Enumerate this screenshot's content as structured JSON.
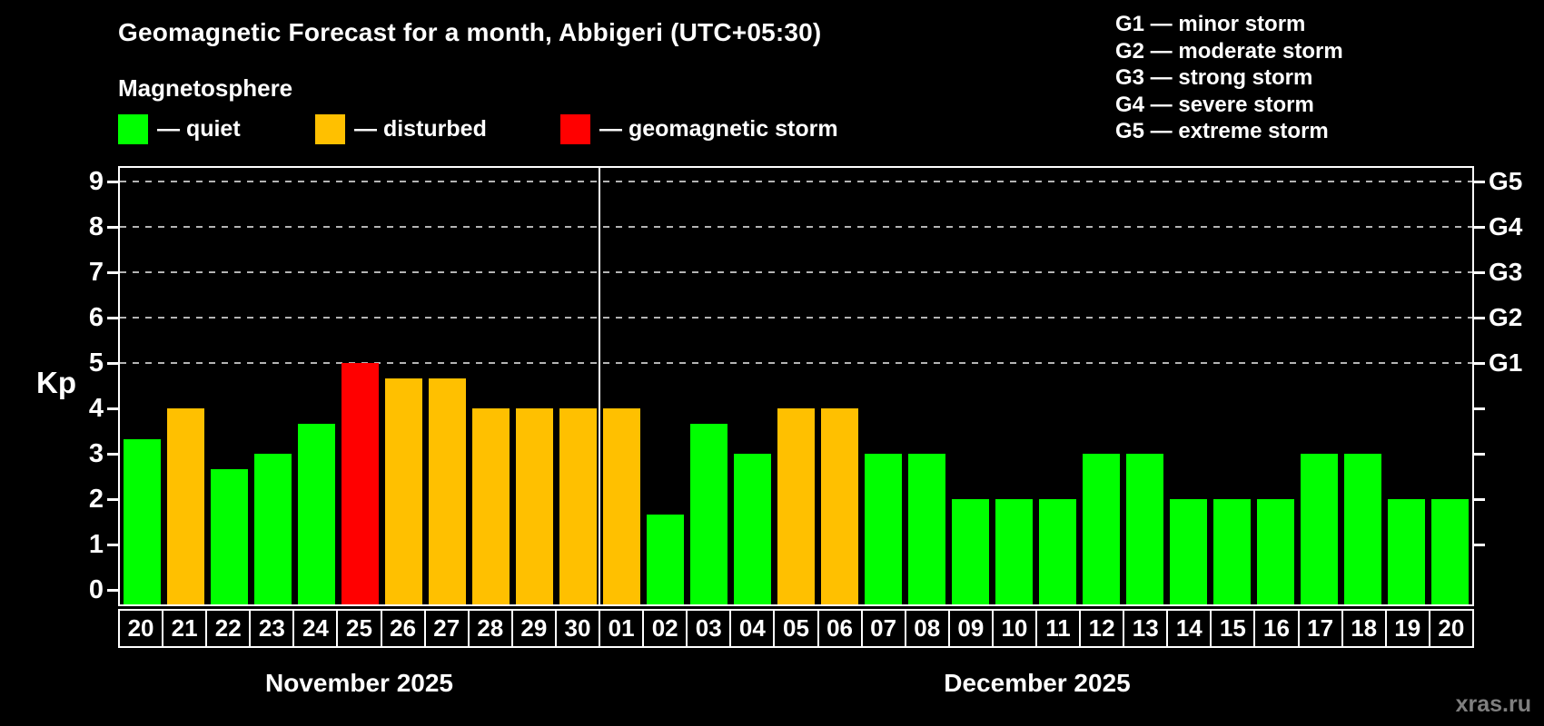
{
  "title": "Geomagnetic Forecast for a month, Abbigeri (UTC+05:30)",
  "subtitle": "Magnetosphere",
  "legend": {
    "items": [
      {
        "key": "quiet",
        "label": "— quiet",
        "color": "#00ff00"
      },
      {
        "key": "disturbed",
        "label": "— disturbed",
        "color": "#ffc000"
      },
      {
        "key": "storm",
        "label": "— geomagnetic storm",
        "color": "#ff0000"
      }
    ]
  },
  "g_legend": [
    "G1 — minor storm",
    "G2 — moderate storm",
    "G3 — strong storm",
    "G4 — severe storm",
    "G5 — extreme storm"
  ],
  "axis": {
    "kp_label": "Kp",
    "y_ticks": [
      0,
      1,
      2,
      3,
      4,
      5,
      6,
      7,
      8,
      9
    ],
    "right_labels": [
      {
        "kp": 5,
        "label": "G1"
      },
      {
        "kp": 6,
        "label": "G2"
      },
      {
        "kp": 7,
        "label": "G3"
      },
      {
        "kp": 8,
        "label": "G4"
      },
      {
        "kp": 9,
        "label": "G5"
      }
    ]
  },
  "months": [
    {
      "name": "November 2025",
      "days": 11
    },
    {
      "name": "December 2025",
      "days": 20
    }
  ],
  "watermark": "xras.ru",
  "chart_data": {
    "type": "bar",
    "title": "Geomagnetic Forecast for a month, Abbigeri (UTC+05:30)",
    "xlabel": "",
    "ylabel": "Kp",
    "ylim": [
      0,
      9.7
    ],
    "grid": "dashed horizontal at Kp 5-9 (G1-G5)",
    "categories": [
      "20",
      "21",
      "22",
      "23",
      "24",
      "25",
      "26",
      "27",
      "28",
      "29",
      "30",
      "01",
      "02",
      "03",
      "04",
      "05",
      "06",
      "07",
      "08",
      "09",
      "10",
      "11",
      "12",
      "13",
      "14",
      "15",
      "16",
      "17",
      "18",
      "19",
      "20"
    ],
    "values": [
      3.33,
      4,
      2.67,
      3,
      3.67,
      5,
      4.67,
      4.67,
      4,
      4,
      4,
      4,
      1.67,
      3.67,
      3,
      4,
      4,
      3,
      3,
      2,
      2,
      2,
      3,
      3,
      2,
      2,
      2,
      3,
      3,
      2,
      2
    ],
    "status": [
      "quiet",
      "disturbed",
      "quiet",
      "quiet",
      "quiet",
      "storm",
      "disturbed",
      "disturbed",
      "disturbed",
      "disturbed",
      "disturbed",
      "disturbed",
      "quiet",
      "quiet",
      "quiet",
      "disturbed",
      "disturbed",
      "quiet",
      "quiet",
      "quiet",
      "quiet",
      "quiet",
      "quiet",
      "quiet",
      "quiet",
      "quiet",
      "quiet",
      "quiet",
      "quiet",
      "quiet",
      "quiet"
    ],
    "status_colors": {
      "quiet": "#00ff00",
      "disturbed": "#ffc000",
      "storm": "#ff0000"
    },
    "month_split_index": 11
  }
}
